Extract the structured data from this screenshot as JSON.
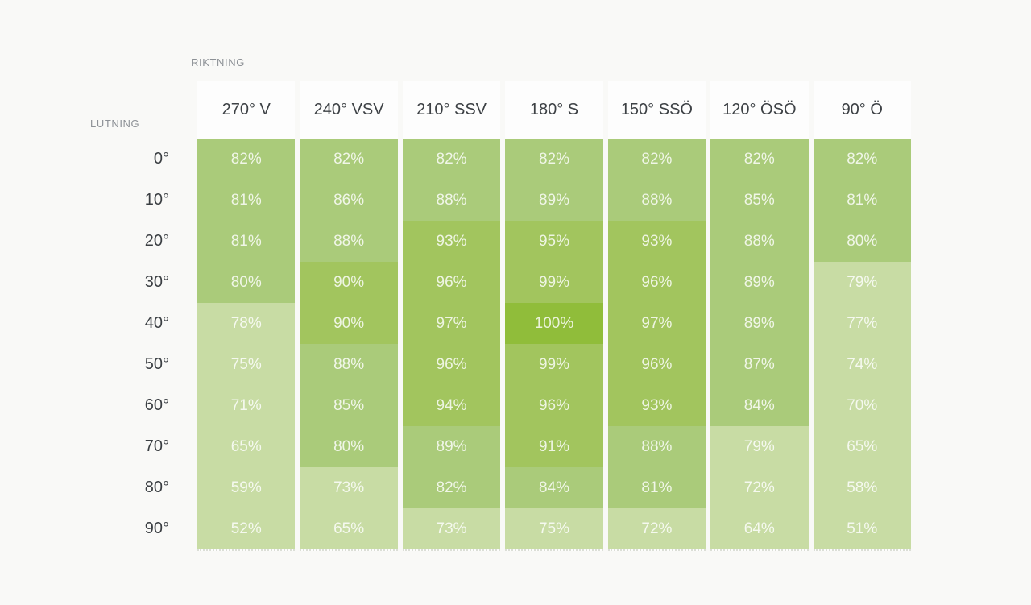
{
  "labels": {
    "riktning": "RIKTNING",
    "lutning": "LUTNING"
  },
  "colors": {
    "page_bg": "#f9f9f7",
    "column_bg": "#fdfdfd",
    "cell_100": "#90bd3a",
    "cell_90_99": "#a2c55e",
    "cell_80_89": "#aacb7a",
    "cell_below_80": "#c8dca4",
    "cell_text": "rgba(255,255,255,0.82)",
    "header_text": "#3d4145",
    "caption_text": "#8d9196"
  },
  "chart_data": {
    "type": "heatmap",
    "title": "",
    "x_axis_label": "RIKTNING",
    "y_axis_label": "LUTNING",
    "unit": "%",
    "legend_position": "none",
    "value_range": [
      51,
      100
    ],
    "columns": [
      "270° V",
      "240° VSV",
      "210° SSV",
      "180° S",
      "150° SSÖ",
      "120° ÖSÖ",
      "90° Ö"
    ],
    "rows": [
      "0°",
      "10°",
      "20°",
      "30°",
      "40°",
      "50°",
      "60°",
      "70°",
      "80°",
      "90°"
    ],
    "series": [
      {
        "name": "270° V",
        "values": [
          82,
          81,
          81,
          80,
          78,
          75,
          71,
          65,
          59,
          52
        ]
      },
      {
        "name": "240° VSV",
        "values": [
          82,
          86,
          88,
          90,
          90,
          88,
          85,
          80,
          73,
          65
        ]
      },
      {
        "name": "210° SSV",
        "values": [
          82,
          88,
          93,
          96,
          97,
          96,
          94,
          89,
          82,
          73
        ]
      },
      {
        "name": "180° S",
        "values": [
          82,
          89,
          95,
          99,
          100,
          99,
          96,
          91,
          84,
          75
        ]
      },
      {
        "name": "150° SSÖ",
        "values": [
          82,
          88,
          93,
          96,
          97,
          96,
          93,
          88,
          81,
          72
        ]
      },
      {
        "name": "120° ÖSÖ",
        "values": [
          82,
          85,
          88,
          89,
          89,
          87,
          84,
          79,
          72,
          64
        ]
      },
      {
        "name": "90° Ö",
        "values": [
          82,
          81,
          80,
          79,
          77,
          74,
          70,
          65,
          58,
          51
        ]
      }
    ],
    "color_bands": [
      {
        "range": "100",
        "color": "#90bd3a"
      },
      {
        "range": "90-99",
        "color": "#a2c55e"
      },
      {
        "range": "80-89",
        "color": "#aacb7a"
      },
      {
        "range": "51-79",
        "color": "#c8dca4"
      }
    ]
  }
}
